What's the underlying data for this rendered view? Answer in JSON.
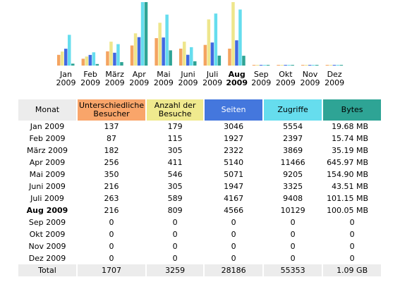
{
  "chart_data": {
    "type": "bar",
    "categories": [
      {
        "month": "Jan",
        "year": "2009"
      },
      {
        "month": "Feb",
        "year": "2009"
      },
      {
        "month": "März",
        "year": "2009"
      },
      {
        "month": "Apr",
        "year": "2009"
      },
      {
        "month": "Mai",
        "year": "2009"
      },
      {
        "month": "Juni",
        "year": "2009"
      },
      {
        "month": "Juli",
        "year": "2009"
      },
      {
        "month": "Aug",
        "year": "2009",
        "current": true
      },
      {
        "month": "Sep",
        "year": "2009"
      },
      {
        "month": "Okt",
        "year": "2009"
      },
      {
        "month": "Nov",
        "year": "2009"
      },
      {
        "month": "Dez",
        "year": "2009"
      }
    ],
    "series": [
      {
        "name": "Unterschiedliche Besucher",
        "color": "#f4a460",
        "values": [
          137,
          87,
          182,
          256,
          350,
          216,
          263,
          216,
          0,
          0,
          0,
          0
        ]
      },
      {
        "name": "Anzahl der Besuche",
        "color": "#eee68c",
        "values": [
          179,
          115,
          305,
          411,
          546,
          305,
          589,
          809,
          0,
          0,
          0,
          0
        ]
      },
      {
        "name": "Seiten",
        "color": "#4169e1",
        "values": [
          3046,
          1927,
          2322,
          5140,
          5071,
          1947,
          4167,
          4566,
          0,
          0,
          0,
          0
        ]
      },
      {
        "name": "Zugriffe",
        "color": "#66ddee",
        "values": [
          5554,
          2397,
          3869,
          11466,
          9205,
          3325,
          9408,
          10129,
          0,
          0,
          0,
          0
        ]
      },
      {
        "name": "Bytes",
        "color": "#2ea495",
        "values": [
          19.68,
          15.74,
          35.19,
          645.97,
          154.9,
          43.51,
          101.15,
          100.05,
          0,
          0,
          0,
          0
        ],
        "unit": "MB"
      }
    ],
    "groups": [
      {
        "series": [
          0,
          1
        ],
        "max": 809
      },
      {
        "series": [
          2,
          3
        ],
        "max": 11466
      },
      {
        "series": [
          4
        ],
        "max": 645.97
      }
    ]
  },
  "table": {
    "headers": {
      "month": "Monat",
      "visitors": "Unterschiedliche Besucher",
      "visits": "Anzahl der Besuche",
      "pages": "Seiten",
      "hits": "Zugriffe",
      "bytes": "Bytes"
    },
    "header_colors": {
      "month": "#ececec",
      "visitors": "#f9a56a",
      "visits": "#f0ea8e",
      "pages": "#4477dd",
      "hits": "#66ddee",
      "bytes": "#2ea495"
    },
    "rows": [
      {
        "month": "Jan 2009",
        "visitors": "137",
        "visits": "179",
        "pages": "3046",
        "hits": "5554",
        "bytes": "19.68 MB"
      },
      {
        "month": "Feb 2009",
        "visitors": "87",
        "visits": "115",
        "pages": "1927",
        "hits": "2397",
        "bytes": "15.74 MB"
      },
      {
        "month": "März 2009",
        "visitors": "182",
        "visits": "305",
        "pages": "2322",
        "hits": "3869",
        "bytes": "35.19 MB"
      },
      {
        "month": "Apr 2009",
        "visitors": "256",
        "visits": "411",
        "pages": "5140",
        "hits": "11466",
        "bytes": "645.97 MB"
      },
      {
        "month": "Mai 2009",
        "visitors": "350",
        "visits": "546",
        "pages": "5071",
        "hits": "9205",
        "bytes": "154.90 MB"
      },
      {
        "month": "Juni 2009",
        "visitors": "216",
        "visits": "305",
        "pages": "1947",
        "hits": "3325",
        "bytes": "43.51 MB"
      },
      {
        "month": "Juli 2009",
        "visitors": "263",
        "visits": "589",
        "pages": "4167",
        "hits": "9408",
        "bytes": "101.15 MB"
      },
      {
        "month": "Aug 2009",
        "visitors": "216",
        "visits": "809",
        "pages": "4566",
        "hits": "10129",
        "bytes": "100.05 MB",
        "current": true
      },
      {
        "month": "Sep 2009",
        "visitors": "0",
        "visits": "0",
        "pages": "0",
        "hits": "0",
        "bytes": "0"
      },
      {
        "month": "Okt 2009",
        "visitors": "0",
        "visits": "0",
        "pages": "0",
        "hits": "0",
        "bytes": "0"
      },
      {
        "month": "Nov 2009",
        "visitors": "0",
        "visits": "0",
        "pages": "0",
        "hits": "0",
        "bytes": "0"
      },
      {
        "month": "Dez 2009",
        "visitors": "0",
        "visits": "0",
        "pages": "0",
        "hits": "0",
        "bytes": "0"
      }
    ],
    "total": {
      "month": "Total",
      "visitors": "1707",
      "visits": "3259",
      "pages": "28186",
      "hits": "55353",
      "bytes": "1.09 GB"
    }
  }
}
